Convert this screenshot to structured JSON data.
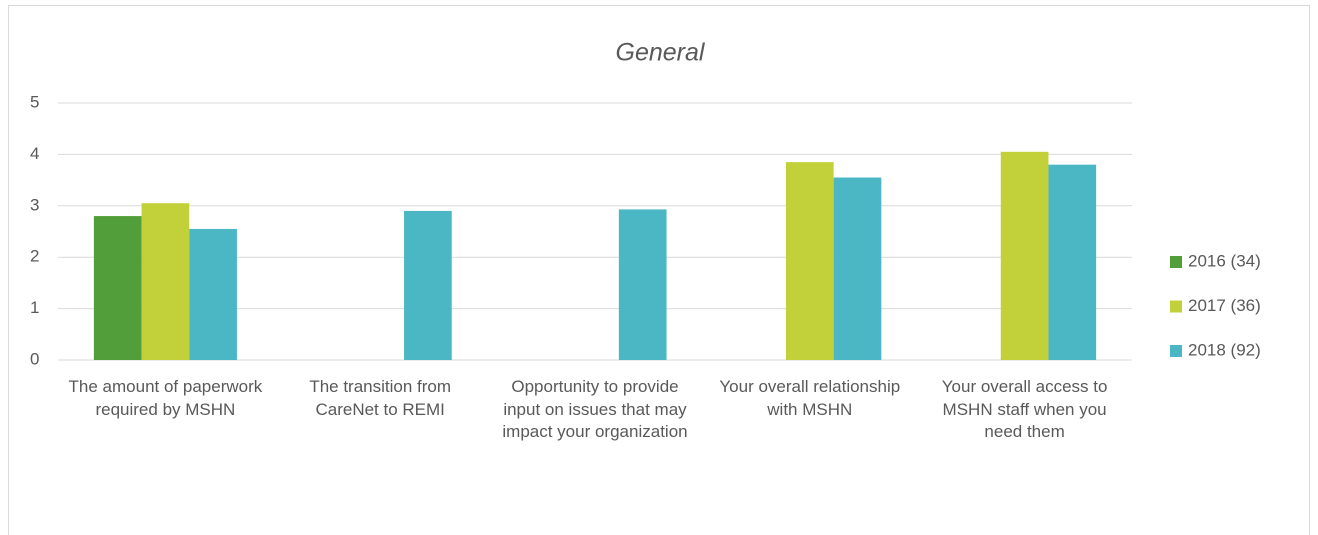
{
  "chart_data": {
    "type": "bar",
    "title": "General",
    "categories": [
      "The amount of paperwork required by MSHN",
      "The transition from CareNet to REMI",
      "Opportunity to provide input on issues that may impact your organization",
      "Your overall relationship with MSHN",
      "Your overall access to MSHN staff when you need them"
    ],
    "series": [
      {
        "name": "2016 (34)",
        "color": "#529e3a",
        "values": [
          2.8,
          null,
          null,
          null,
          null
        ]
      },
      {
        "name": "2017 (36)",
        "color": "#c2d13a",
        "values": [
          3.05,
          null,
          null,
          3.85,
          4.05
        ]
      },
      {
        "name": "2018 (92)",
        "color": "#4bb6c4",
        "values": [
          2.55,
          2.9,
          2.93,
          3.55,
          3.8
        ]
      }
    ],
    "ylim": [
      0,
      5
    ],
    "yticks": [
      0,
      1,
      2,
      3,
      4,
      5
    ],
    "grid": true,
    "legend": "right"
  }
}
